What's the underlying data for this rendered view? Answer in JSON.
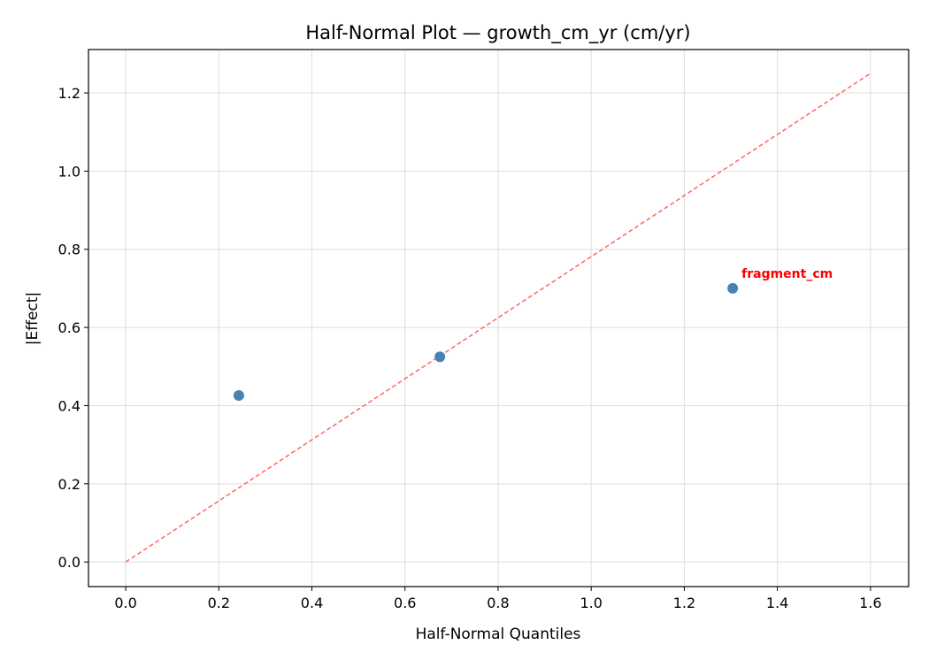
{
  "chart_data": {
    "type": "scatter",
    "title": "Half-Normal Plot — growth_cm_yr (cm/yr)",
    "xlabel": "Half-Normal Quantiles",
    "ylabel": "|Effect|",
    "xlim": [
      -0.08,
      1.682
    ],
    "ylim": [
      -0.063,
      1.311
    ],
    "xticks": [
      "0.0",
      "0.2",
      "0.4",
      "0.6",
      "0.8",
      "1.0",
      "1.2",
      "1.4",
      "1.6"
    ],
    "yticks": [
      "0.0",
      "0.2",
      "0.4",
      "0.6",
      "0.8",
      "1.0",
      "1.2"
    ],
    "grid": true,
    "points": [
      {
        "x": 0.243,
        "y": 0.426,
        "label": ""
      },
      {
        "x": 0.675,
        "y": 0.525,
        "label": ""
      },
      {
        "x": 1.304,
        "y": 0.7,
        "label": "fragment_cm"
      }
    ],
    "reference_line": {
      "x": [
        0,
        1.6
      ],
      "y": [
        0,
        1.25
      ],
      "style": "dashed",
      "color": "#ff6666"
    },
    "point_color": "#4682b4",
    "annotation_color": "#ff0000"
  }
}
